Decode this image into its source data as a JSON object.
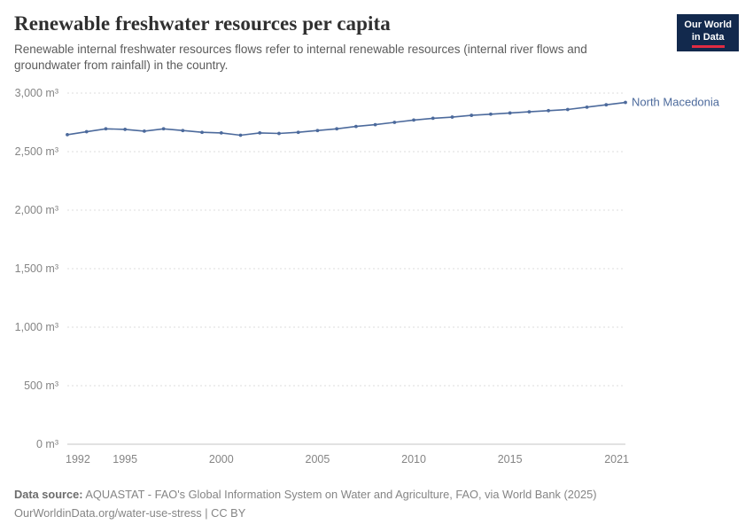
{
  "header": {
    "title": "Renewable freshwater resources per capita",
    "subtitle": "Renewable internal freshwater resources flows refer to internal renewable resources (internal river flows and groundwater from rainfall) in the country.",
    "logo": {
      "line1": "Our World",
      "line2": "in Data"
    }
  },
  "chart_data": {
    "type": "line",
    "title": "Renewable freshwater resources per capita",
    "xlabel": "",
    "ylabel": "m³ per capita",
    "xlim": [
      1992,
      2021
    ],
    "ylim": [
      0,
      3000
    ],
    "grid": true,
    "legend_position": "end-of-line-label",
    "x": [
      1992,
      1993,
      1994,
      1995,
      1996,
      1997,
      1998,
      1999,
      2000,
      2001,
      2002,
      2003,
      2004,
      2005,
      2006,
      2007,
      2008,
      2009,
      2010,
      2011,
      2012,
      2013,
      2014,
      2015,
      2016,
      2017,
      2018,
      2019,
      2020,
      2021
    ],
    "x_ticks": [
      1992,
      1995,
      2000,
      2005,
      2010,
      2015,
      2021
    ],
    "x_tick_labels": [
      "1992",
      "1995",
      "2000",
      "2005",
      "2010",
      "2015",
      "2021"
    ],
    "y_ticks": [
      0,
      500,
      1000,
      1500,
      2000,
      2500,
      3000
    ],
    "y_tick_labels": [
      "0 m³",
      "500 m³",
      "1,000 m³",
      "1,500 m³",
      "2,000 m³",
      "2,500 m³",
      "3,000 m³"
    ],
    "series": [
      {
        "name": "North Macedonia",
        "color": "#4c6a9c",
        "values": [
          2645,
          2670,
          2695,
          2690,
          2675,
          2695,
          2680,
          2665,
          2660,
          2640,
          2660,
          2655,
          2665,
          2680,
          2695,
          2715,
          2730,
          2750,
          2770,
          2785,
          2795,
          2810,
          2820,
          2830,
          2840,
          2850,
          2860,
          2880,
          2900,
          2920
        ]
      }
    ]
  },
  "footer": {
    "source_label": "Data source:",
    "source_text": " AQUASTAT - FAO's Global Information System on Water and Agriculture, FAO, via World Bank (2025)",
    "attribution": "OurWorldinData.org/water-use-stress | CC BY"
  }
}
